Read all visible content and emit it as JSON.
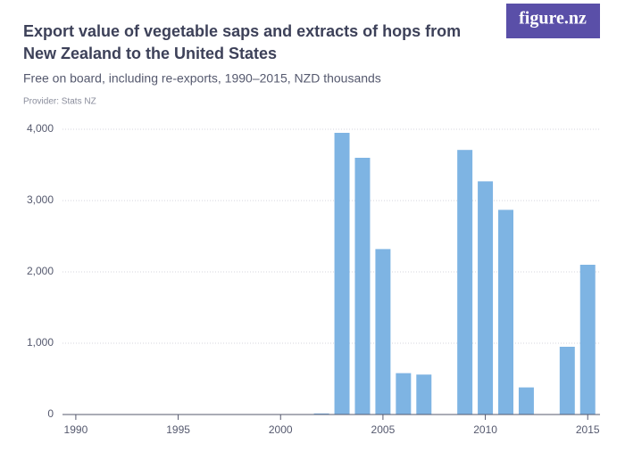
{
  "chart_data": {
    "type": "bar",
    "title_lines": [
      "Export value of vegetable saps and extracts of hops from",
      "New Zealand to the United States"
    ],
    "subtitle": "Free on board, including re-exports, 1990–2015, NZD thousands",
    "provider": "Provider: Stats NZ",
    "logo": "figure.nz",
    "x": [
      1990,
      1991,
      1992,
      1993,
      1994,
      1995,
      1996,
      1997,
      1998,
      1999,
      2000,
      2001,
      2002,
      2003,
      2004,
      2005,
      2006,
      2007,
      2008,
      2009,
      2010,
      2011,
      2012,
      2013,
      2014,
      2015
    ],
    "values": [
      0,
      0,
      0,
      0,
      0,
      0,
      0,
      0,
      0,
      0,
      0,
      0,
      15,
      3950,
      3600,
      2320,
      580,
      560,
      0,
      3710,
      3270,
      2870,
      380,
      0,
      950,
      2100
    ],
    "color": "#7eb4e3",
    "xlim": [
      1989.35,
      2015.6
    ],
    "xticks": [
      1990,
      1995,
      2000,
      2005,
      2010,
      2015
    ],
    "ylim": [
      0,
      4000
    ],
    "yticks": [
      0,
      {
        "value": 1000,
        "label": "1,000"
      },
      {
        "value": 2000,
        "label": "2,000"
      },
      {
        "value": 3000,
        "label": "3,000"
      },
      {
        "value": 4000,
        "label": "4,000"
      }
    ],
    "grid": true
  }
}
